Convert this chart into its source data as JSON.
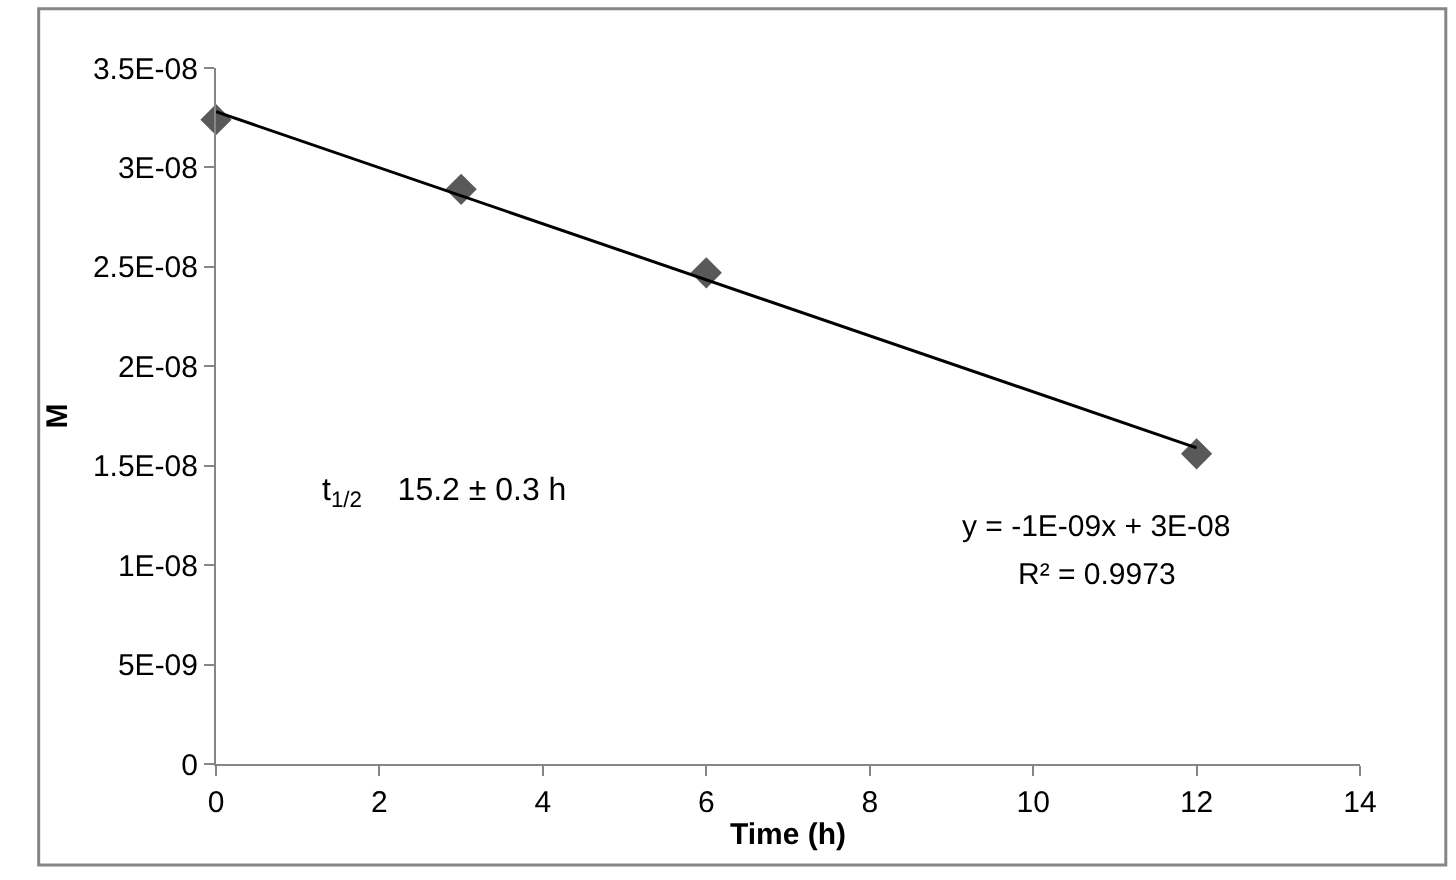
{
  "chart_data": {
    "type": "scatter",
    "xlabel": "Time (h)",
    "ylabel": "M",
    "series": [
      {
        "color": "#595959",
        "x": [
          0,
          3,
          6,
          12
        ],
        "values": [
          3.24e-08,
          2.89e-08,
          2.47e-08,
          1.56e-08
        ],
        "marker": "diamond"
      },
      {
        "type": "line",
        "color": "#000000",
        "x": [
          0,
          12
        ],
        "values": [
          3.28e-08,
          1.59e-08
        ],
        "marker": "none",
        "line_style": "solid"
      }
    ],
    "xlim": [
      0,
      14
    ],
    "xticks": [
      0,
      2,
      4,
      6,
      8,
      10,
      12,
      14
    ],
    "ylim": [
      0,
      3.5e-08
    ],
    "yticks": [
      {
        "value": 0,
        "label": "0"
      },
      {
        "value": 5e-09,
        "label": "5E-09"
      },
      {
        "value": 1e-08,
        "label": "1E-08"
      },
      {
        "value": 1.5e-08,
        "label": "1.5E-08"
      },
      {
        "value": 2e-08,
        "label": "2E-08"
      },
      {
        "value": 2.5e-08,
        "label": "2.5E-08"
      },
      {
        "value": 3e-08,
        "label": "3E-08"
      },
      {
        "value": 3.5e-08,
        "label": "3.5E-08"
      }
    ],
    "annotations": [
      "t$_{1/2}$    15.2 ± 0.3 h",
      "y = -1E-09x + 3E-08",
      "R² = 0.9973"
    ]
  }
}
